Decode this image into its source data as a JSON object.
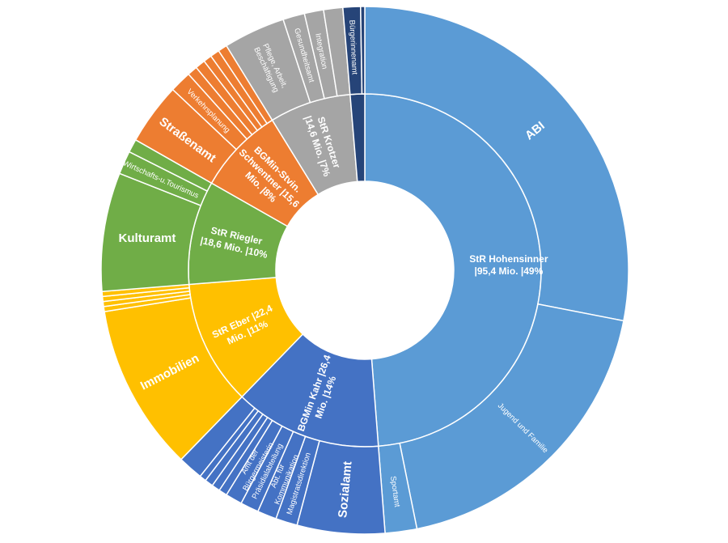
{
  "chart_data": {
    "type": "sunburst",
    "inner": [
      {
        "label": "StR Hohensinner |95,4 Mio. |49%",
        "value": 95.4,
        "color": "#5B9BD5",
        "text_color": "#ffffff"
      },
      {
        "label": "BGMin Kahr |26,4 Mio. |14%",
        "value": 26.4,
        "color": "#4472C4",
        "text_color": "#ffffff"
      },
      {
        "label": "StR Eber |22,4 Mio. |11%",
        "value": 22.4,
        "color": "#FFC000",
        "text_color": "#ffffff"
      },
      {
        "label": "StR Riegler |18,6 Mio. |10%",
        "value": 18.6,
        "color": "#70AD47",
        "text_color": "#ffffff"
      },
      {
        "label": "BGMin-Stvin. Schwentner |15,6 Mio. |8%",
        "value": 15.6,
        "color": "#ED7D31",
        "text_color": "#ffffff"
      },
      {
        "label": "StR Krotzer |14,6 Mio. |7%",
        "value": 14.6,
        "color": "#A5A5A5",
        "text_color": "#ffffff"
      },
      {
        "label": "",
        "value": 2.6,
        "color": "#264478",
        "text_color": "#ffffff"
      }
    ],
    "outer": [
      {
        "label": "ABI",
        "value": 54.9,
        "parent": 0,
        "big": true
      },
      {
        "label": "Jugend und Familie",
        "value": 36.7,
        "parent": 0
      },
      {
        "label": "Sportamt",
        "value": 3.8,
        "parent": 0
      },
      {
        "label": "Sozialamt",
        "value": 10.5,
        "parent": 1,
        "big": true
      },
      {
        "label": "Magistratsdirektion",
        "value": 2.6,
        "parent": 1
      },
      {
        "label": "Abt. für Kommunikation",
        "value": 2.3,
        "parent": 1
      },
      {
        "label": "Präsidialabteilung",
        "value": 2.2,
        "parent": 1
      },
      {
        "label": "Amt der Bürgermeisterin",
        "value": 2.0,
        "parent": 1
      },
      {
        "label": "",
        "value": 1.0,
        "parent": 1
      },
      {
        "label": "",
        "value": 1.0,
        "parent": 1
      },
      {
        "label": "",
        "value": 1.0,
        "parent": 1
      },
      {
        "label": "",
        "value": 0.8,
        "parent": 1
      },
      {
        "label": "",
        "value": 3.0,
        "parent": 1
      },
      {
        "label": "Immobilien",
        "value": 20.0,
        "parent": 2,
        "big": true
      },
      {
        "label": "",
        "value": 0.6,
        "parent": 2
      },
      {
        "label": "",
        "value": 0.6,
        "parent": 2
      },
      {
        "label": "",
        "value": 0.6,
        "parent": 2
      },
      {
        "label": "",
        "value": 0.6,
        "parent": 2
      },
      {
        "label": "Kulturamt",
        "value": 14.2,
        "parent": 3,
        "big": true
      },
      {
        "label": "Wirtschafts-u.Tourismus",
        "value": 2.8,
        "parent": 3
      },
      {
        "label": "",
        "value": 1.6,
        "parent": 3
      },
      {
        "label": "Straßenamt",
        "value": 7.4,
        "parent": 4,
        "big": true
      },
      {
        "label": "Verkehrsplanung",
        "value": 2.6,
        "parent": 4
      },
      {
        "label": "",
        "value": 1.2,
        "parent": 4
      },
      {
        "label": "",
        "value": 1.2,
        "parent": 4
      },
      {
        "label": "",
        "value": 1.0,
        "parent": 4
      },
      {
        "label": "",
        "value": 1.1,
        "parent": 4
      },
      {
        "label": "",
        "value": 1.1,
        "parent": 4
      },
      {
        "label": "Pflege, Arbeit, Beschäftigung",
        "value": 7.4,
        "parent": 5
      },
      {
        "label": "Gesundheitsamt",
        "value": 2.6,
        "parent": 5
      },
      {
        "label": "Integration",
        "value": 2.3,
        "parent": 5
      },
      {
        "label": "",
        "value": 2.3,
        "parent": 5
      },
      {
        "label": "Bürgerinnenamt",
        "value": 2.1,
        "parent": 6
      },
      {
        "label": "",
        "value": 0.5,
        "parent": 6
      }
    ]
  }
}
